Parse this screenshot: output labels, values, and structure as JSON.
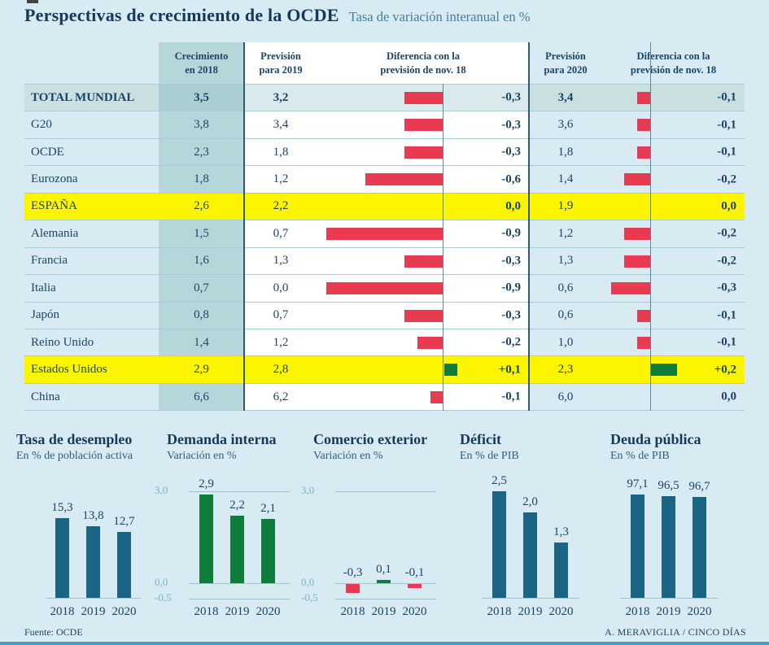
{
  "page": {
    "title": "Perspectivas de crecimiento de la OCDE",
    "subtitle": "Tasa de variación interanual en %"
  },
  "colors": {
    "page_bg": "#d8eaf2",
    "navy_text": "#1d4464",
    "teal_column_bg": "#b6d7d9",
    "total_row_bg": "#c9dfe2",
    "highlight_yellow": "#fdf500",
    "bar_red": "#e83a50",
    "bar_green": "#0e7c3a",
    "bar_teal": "#1a6584",
    "grid_teal": "#9ec3ca",
    "ytick_teal": "#6fb6c6",
    "bottom_strip_blue": "#3aa0d2"
  },
  "chart_data": [
    {
      "type": "table",
      "col_headers": [
        {
          "line1": "Crecimiento",
          "line2": "en 2018"
        },
        {
          "line1": "Previsión",
          "line2": "para 2019"
        },
        {
          "line1": "Diferencia con la",
          "line2": "previsión de nov. 18"
        },
        {
          "line1": "Previsión",
          "line2": "para 2020"
        },
        {
          "line1": "Diferencia con la",
          "line2": "previsión de nov. 18"
        }
      ],
      "rows": [
        {
          "label": "TOTAL MUNDIAL",
          "growth_2018": "3,5",
          "forecast_2019": "3,2",
          "diff_2019": -0.3,
          "diff_2019_label": "-0,3",
          "forecast_2020": "3,4",
          "diff_2020": -0.1,
          "diff_2020_label": "-0,1",
          "emphasis": "total"
        },
        {
          "label": "G20",
          "growth_2018": "3,8",
          "forecast_2019": "3,4",
          "diff_2019": -0.3,
          "diff_2019_label": "-0,3",
          "forecast_2020": "3,6",
          "diff_2020": -0.1,
          "diff_2020_label": "-0,1",
          "emphasis": ""
        },
        {
          "label": "OCDE",
          "growth_2018": "2,3",
          "forecast_2019": "1,8",
          "diff_2019": -0.3,
          "diff_2019_label": "-0,3",
          "forecast_2020": "1,8",
          "diff_2020": -0.1,
          "diff_2020_label": "-0,1",
          "emphasis": ""
        },
        {
          "label": "Eurozona",
          "growth_2018": "1,8",
          "forecast_2019": "1,2",
          "diff_2019": -0.6,
          "diff_2019_label": "-0,6",
          "forecast_2020": "1,4",
          "diff_2020": -0.2,
          "diff_2020_label": "-0,2",
          "emphasis": ""
        },
        {
          "label": "ESPAÑA",
          "growth_2018": "2,6",
          "forecast_2019": "2,2",
          "diff_2019": 0,
          "diff_2019_label": "0,0",
          "forecast_2020": "1,9",
          "diff_2020": 0,
          "diff_2020_label": "0,0",
          "emphasis": "highlight"
        },
        {
          "label": "Alemania",
          "growth_2018": "1,5",
          "forecast_2019": "0,7",
          "diff_2019": -0.9,
          "diff_2019_label": "-0,9",
          "forecast_2020": "1,2",
          "diff_2020": -0.2,
          "diff_2020_label": "-0,2",
          "emphasis": ""
        },
        {
          "label": "Francia",
          "growth_2018": "1,6",
          "forecast_2019": "1,3",
          "diff_2019": -0.3,
          "diff_2019_label": "-0,3",
          "forecast_2020": "1,3",
          "diff_2020": -0.2,
          "diff_2020_label": "-0,2",
          "emphasis": ""
        },
        {
          "label": "Italia",
          "growth_2018": "0,7",
          "forecast_2019": "0,0",
          "diff_2019": -0.9,
          "diff_2019_label": "-0,9",
          "forecast_2020": "0,6",
          "diff_2020": -0.3,
          "diff_2020_label": "-0,3",
          "emphasis": ""
        },
        {
          "label": "Japón",
          "growth_2018": "0,8",
          "forecast_2019": "0,7",
          "diff_2019": -0.3,
          "diff_2019_label": "-0,3",
          "forecast_2020": "0,6",
          "diff_2020": -0.1,
          "diff_2020_label": "-0,1",
          "emphasis": ""
        },
        {
          "label": "Reino Unido",
          "growth_2018": "1,4",
          "forecast_2019": "1,2",
          "diff_2019": -0.2,
          "diff_2019_label": "-0,2",
          "forecast_2020": "1,0",
          "diff_2020": -0.1,
          "diff_2020_label": "-0,1",
          "emphasis": ""
        },
        {
          "label": "Estados Unidos",
          "growth_2018": "2,9",
          "forecast_2019": "2,8",
          "diff_2019": 0.1,
          "diff_2019_label": "+0,1",
          "forecast_2020": "2,3",
          "diff_2020": 0.2,
          "diff_2020_label": "+0,2",
          "emphasis": "highlight"
        },
        {
          "label": "China",
          "growth_2018": "6,6",
          "forecast_2019": "6,2",
          "diff_2019": -0.1,
          "diff_2019_label": "-0,1",
          "forecast_2020": "6,0",
          "diff_2020": 0,
          "diff_2020_label": "0,0",
          "emphasis": ""
        }
      ]
    },
    {
      "type": "bar",
      "title": "Tasa de desempleo",
      "subtitle": "En % de población activa",
      "categories": [
        "2018",
        "2019",
        "2020"
      ],
      "values": [
        15.3,
        13.8,
        12.7
      ],
      "value_labels": [
        "15,3",
        "13,8",
        "12,7"
      ],
      "bar_colors": [
        "#1a6584",
        "#1a6584",
        "#1a6584"
      ],
      "yticks": []
    },
    {
      "type": "bar",
      "title": "Demanda interna",
      "subtitle": "Variación en %",
      "categories": [
        "2018",
        "2019",
        "2020"
      ],
      "values": [
        2.9,
        2.2,
        2.1
      ],
      "value_labels": [
        "2,9",
        "2,2",
        "2,1"
      ],
      "bar_colors": [
        "#0e7c3a",
        "#0e7c3a",
        "#0e7c3a"
      ],
      "yticks": [
        "3,0",
        "0,0",
        "-0,5"
      ],
      "ylim": [
        -0.5,
        3.0
      ]
    },
    {
      "type": "bar",
      "title": "Comercio exterior",
      "subtitle": "Variación en %",
      "categories": [
        "2018",
        "2019",
        "2020"
      ],
      "values": [
        -0.3,
        0.1,
        -0.1
      ],
      "value_labels": [
        "-0,3",
        "0,1",
        "-0,1"
      ],
      "bar_colors": [
        "#e83a50",
        "#0e7c3a",
        "#e83a50"
      ],
      "yticks": [
        "3,0",
        "0,0",
        "-0,5"
      ],
      "ylim": [
        -0.5,
        3.0
      ]
    },
    {
      "type": "bar",
      "title": "Déficit",
      "subtitle": "En % de PIB",
      "categories": [
        "2018",
        "2019",
        "2020"
      ],
      "values": [
        2.5,
        2.0,
        1.3
      ],
      "value_labels": [
        "2,5",
        "2,0",
        "1,3"
      ],
      "bar_colors": [
        "#1a6584",
        "#1a6584",
        "#1a6584"
      ],
      "yticks": []
    },
    {
      "type": "bar",
      "title": "Deuda pública",
      "subtitle": "En % de PIB",
      "categories": [
        "2018",
        "2019",
        "2020"
      ],
      "values": [
        97.1,
        96.5,
        96.7
      ],
      "value_labels": [
        "97,1",
        "96,5",
        "96,7"
      ],
      "bar_colors": [
        "#1a6584",
        "#1a6584",
        "#1a6584"
      ],
      "yticks": []
    }
  ],
  "footer": {
    "source": "Fuente: OCDE",
    "credit": "A. MERAVIGLIA / CINCO DÍAS"
  }
}
